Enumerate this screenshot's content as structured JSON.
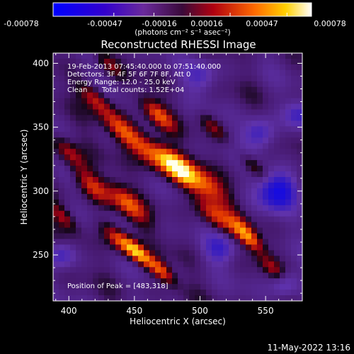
{
  "chart_data": {
    "type": "heatmap",
    "title": "Reconstructed RHESSI Image",
    "xlabel": "Heliocentric X (arcsec)",
    "ylabel": "Heliocentric Y (arcsec)",
    "xlim": [
      388,
      578
    ],
    "ylim": [
      214,
      408
    ],
    "xticks": [
      400,
      450,
      500,
      550
    ],
    "yticks": [
      250,
      300,
      350,
      400
    ],
    "colorbar": {
      "ticks": [
        "-0.00078",
        "-0.00047",
        "-0.00016",
        "0.00016",
        "0.00047",
        "0.00078"
      ],
      "label": "(photons cm⁻² s⁻¹ asec⁻²)",
      "range": [
        -0.00078,
        0.00078
      ]
    },
    "annotations": {
      "line1": "19-Feb-2013 07:45:40.000 to 07:51:40.000",
      "line2": "Detectors: 3F 4F 5F 6F 7F 8F, Att 0",
      "line3": "Energy Range: 12.0 - 25.0 keV",
      "line4_method": "Clean",
      "line4_counts": "Total counts: 1.52E+04",
      "peak": "Position of Peak = [483,318]"
    },
    "peak": [
      483,
      318
    ]
  },
  "footer": {
    "timestamp": "11-May-2022 13:16"
  }
}
